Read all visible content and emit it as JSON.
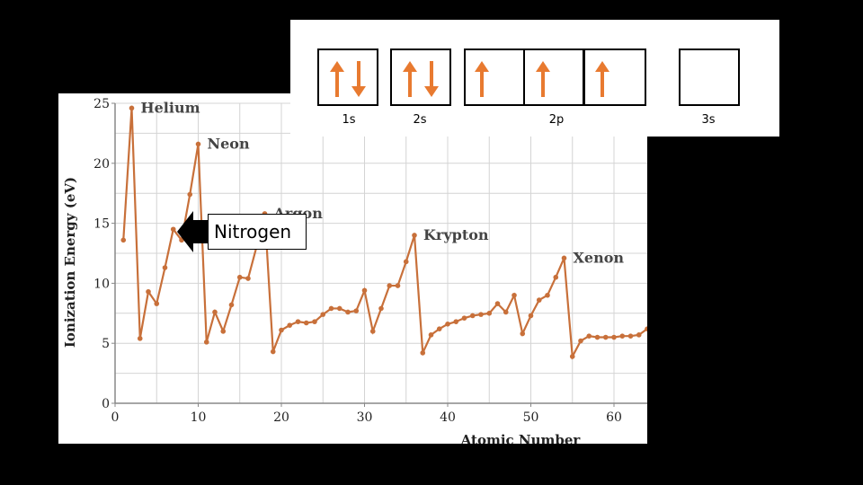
{
  "chart_data": {
    "type": "line",
    "xlabel": "Atomic Number",
    "ylabel": "Ionization Energy (eV)",
    "xlim": [
      0,
      64
    ],
    "ylim": [
      0,
      25
    ],
    "x_ticks": [
      "0",
      "10",
      "20",
      "30",
      "40",
      "50",
      "60"
    ],
    "y_ticks": [
      "0",
      "5",
      "10",
      "15",
      "20",
      "25"
    ],
    "grid": true,
    "line_color": "#c8703a",
    "series": [
      {
        "x": [
          1,
          2,
          3,
          4,
          5,
          6,
          7,
          8,
          9,
          10,
          11,
          12,
          13,
          14,
          15,
          16,
          17,
          18,
          19,
          20,
          21,
          22,
          23,
          24,
          25,
          26,
          27,
          28,
          29,
          30,
          31,
          32,
          33,
          34,
          35,
          36,
          37,
          38,
          39,
          40,
          41,
          42,
          43,
          44,
          45,
          46,
          47,
          48,
          49,
          50,
          51,
          52,
          53,
          54,
          55,
          56,
          57,
          58,
          59,
          60,
          61,
          62,
          63,
          64
        ],
        "values": [
          13.6,
          24.6,
          5.4,
          9.3,
          8.3,
          11.3,
          14.5,
          13.6,
          17.4,
          21.6,
          5.1,
          7.6,
          6.0,
          8.2,
          10.5,
          10.4,
          13.0,
          15.8,
          4.3,
          6.1,
          6.5,
          6.8,
          6.7,
          6.8,
          7.4,
          7.9,
          7.9,
          7.6,
          7.7,
          9.4,
          6.0,
          7.9,
          9.8,
          9.8,
          11.8,
          14.0,
          4.2,
          5.7,
          6.2,
          6.6,
          6.8,
          7.1,
          7.3,
          7.4,
          7.5,
          8.3,
          7.6,
          9.0,
          5.8,
          7.3,
          8.6,
          9.0,
          10.5,
          12.1,
          3.9,
          5.2,
          5.6,
          5.5,
          5.5,
          5.5,
          5.6,
          5.6,
          5.7,
          6.2
        ]
      }
    ],
    "annotations": [
      {
        "label": "Helium",
        "x": 2,
        "y": 24.6
      },
      {
        "label": "Neon",
        "x": 10,
        "y": 21.6
      },
      {
        "label": "Argon",
        "x": 18,
        "y": 15.8
      },
      {
        "label": "Krypton",
        "x": 36,
        "y": 14.0
      },
      {
        "label": "Xenon",
        "x": 54,
        "y": 12.1
      }
    ]
  },
  "callout": {
    "label": "Nitrogen"
  },
  "orbitals": {
    "labels": [
      "1s",
      "2s",
      "2p",
      "3s"
    ],
    "arrow_color": "#e87a30",
    "occupancy": [
      {
        "orbital": "1s",
        "electrons": [
          "up",
          "down"
        ]
      },
      {
        "orbital": "2s",
        "electrons": [
          "up",
          "down"
        ]
      },
      {
        "orbital": "2p",
        "electrons": [
          "up",
          "up",
          "up"
        ]
      },
      {
        "orbital": "3s",
        "electrons": []
      }
    ]
  }
}
